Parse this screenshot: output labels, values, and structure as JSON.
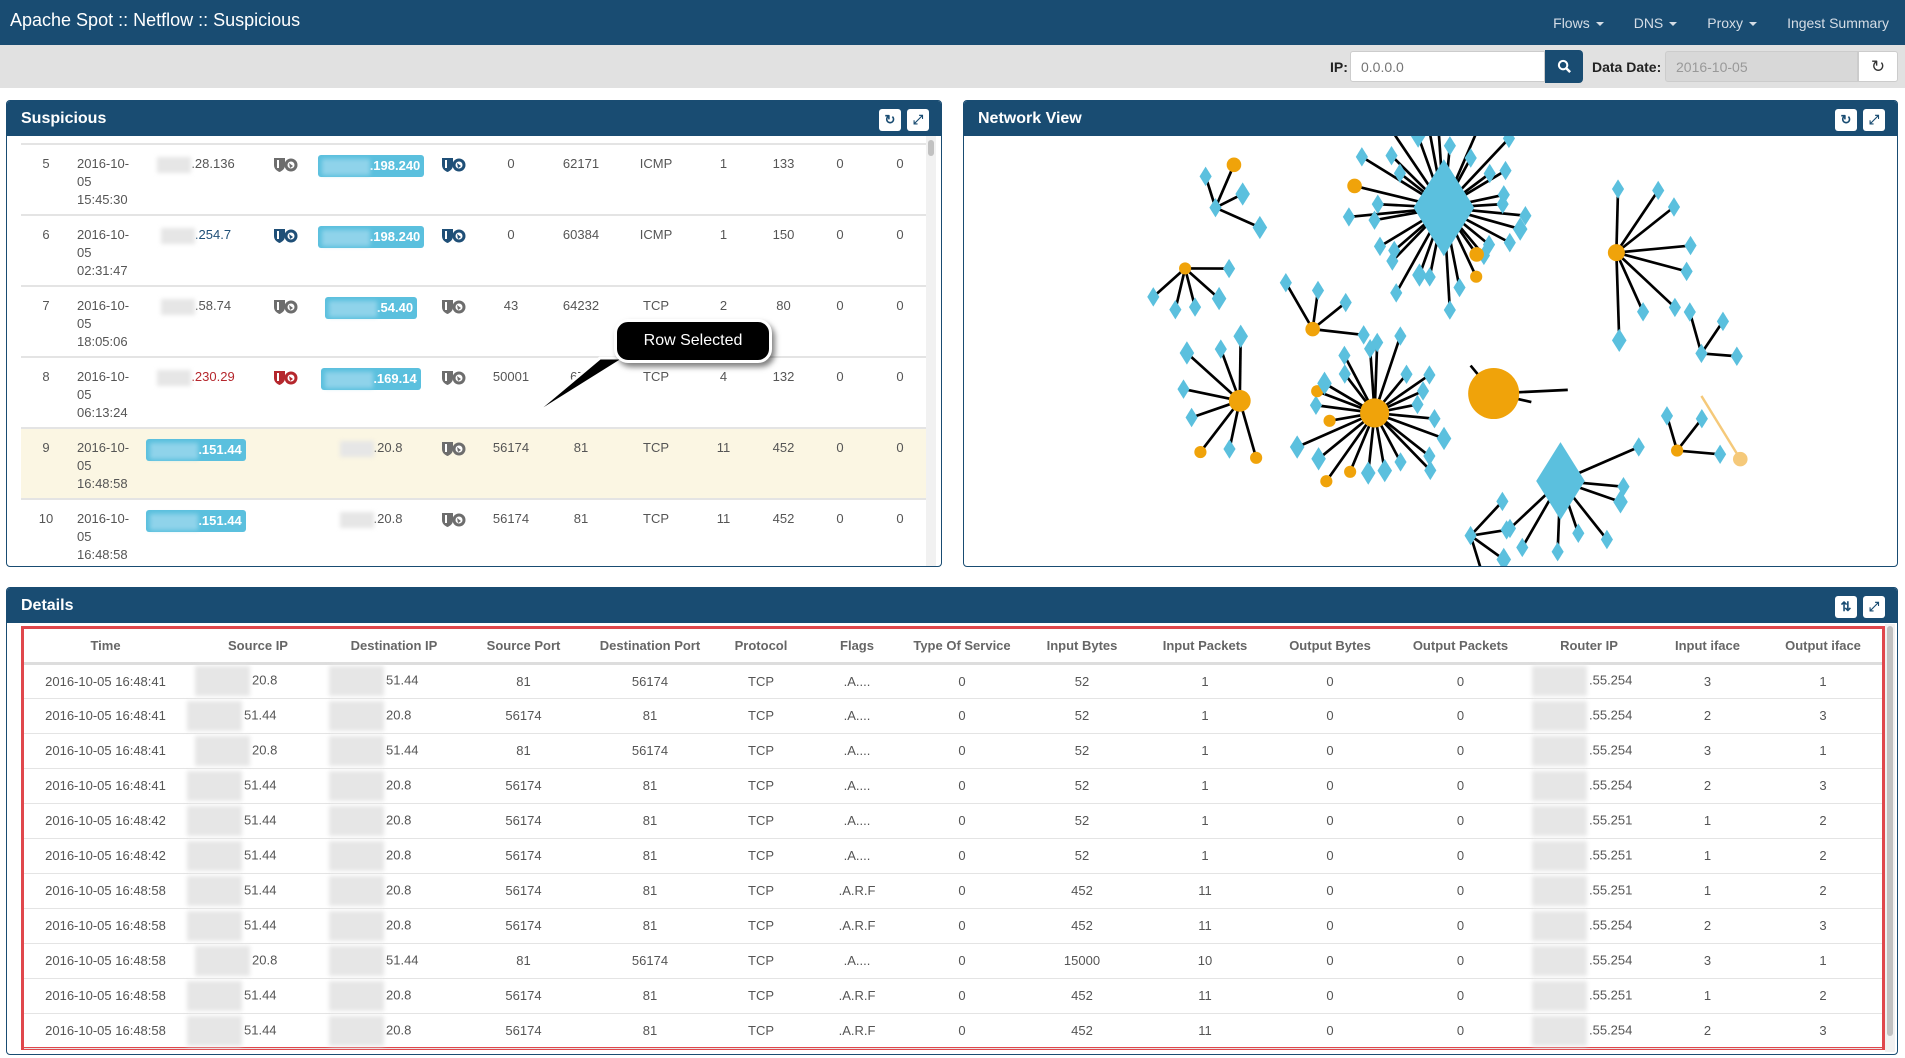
{
  "header": {
    "title": "Apache Spot :: Netflow :: Suspicious",
    "nav": [
      {
        "label": "Flows",
        "dropdown": true
      },
      {
        "label": "DNS",
        "dropdown": true
      },
      {
        "label": "Proxy",
        "dropdown": true
      },
      {
        "label": "Ingest Summary",
        "dropdown": false
      }
    ]
  },
  "toolbar": {
    "ip_label": "IP:",
    "ip_placeholder": "0.0.0.0",
    "date_label": "Data Date:",
    "date_value": "2016-10-05"
  },
  "suspicious": {
    "title": "Suspicious",
    "tooltip": "Row Selected",
    "rows": [
      [
        "5",
        "2016-10-05 15:45:30",
        ".28.136",
        "plain",
        "gray",
        ".198.240",
        "badge",
        "dark",
        "0",
        "62171",
        "ICMP",
        "1",
        "133",
        "0",
        "0"
      ],
      [
        "6",
        "2016-10-05 02:31:47",
        ".254.7",
        "plain-blue",
        "dark",
        ".198.240",
        "badge",
        "dark",
        "0",
        "60384",
        "ICMP",
        "1",
        "150",
        "0",
        "0"
      ],
      [
        "7",
        "2016-10-05 18:05:06",
        ".58.74",
        "plain",
        "gray",
        ".54.40",
        "badge",
        "gray",
        "43",
        "64232",
        "TCP",
        "2",
        "80",
        "0",
        "0"
      ],
      [
        "8",
        "2016-10-05 06:13:24",
        ".230.29",
        "plain-red",
        "red",
        ".169.14",
        "badge",
        "gray",
        "50001",
        "673",
        "TCP",
        "4",
        "132",
        "0",
        "0"
      ],
      [
        "9",
        "2016-10-05 16:48:58",
        ".151.44",
        "badge",
        "none",
        ".20.8",
        "plain",
        "gray",
        "56174",
        "81",
        "TCP",
        "11",
        "452",
        "0",
        "0"
      ],
      [
        "10",
        "2016-10-05 16:48:58",
        ".151.44",
        "badge",
        "none",
        ".20.8",
        "plain",
        "gray",
        "56174",
        "81",
        "TCP",
        "11",
        "452",
        "0",
        "0"
      ]
    ],
    "selected_rank": "9"
  },
  "network": {
    "title": "Network View"
  },
  "details": {
    "title": "Details",
    "columns": [
      "Time",
      "Source IP",
      "Destination IP",
      "Source Port",
      "Destination Port",
      "Protocol",
      "Flags",
      "Type Of Service",
      "Input Bytes",
      "Input Packets",
      "Output Bytes",
      "Output Packets",
      "Router IP",
      "Input iface",
      "Output iface"
    ],
    "rows": [
      [
        "2016-10-05 16:48:41",
        "20.8",
        "51.44",
        "81",
        "56174",
        "TCP",
        ".A....",
        "0",
        "52",
        "1",
        "0",
        "0",
        ".55.254",
        "3",
        "1"
      ],
      [
        "2016-10-05 16:48:41",
        "51.44",
        "20.8",
        "56174",
        "81",
        "TCP",
        ".A....",
        "0",
        "52",
        "1",
        "0",
        "0",
        ".55.254",
        "2",
        "3"
      ],
      [
        "2016-10-05 16:48:41",
        "20.8",
        "51.44",
        "81",
        "56174",
        "TCP",
        ".A....",
        "0",
        "52",
        "1",
        "0",
        "0",
        ".55.254",
        "3",
        "1"
      ],
      [
        "2016-10-05 16:48:41",
        "51.44",
        "20.8",
        "56174",
        "81",
        "TCP",
        ".A....",
        "0",
        "52",
        "1",
        "0",
        "0",
        ".55.254",
        "2",
        "3"
      ],
      [
        "2016-10-05 16:48:42",
        "51.44",
        "20.8",
        "56174",
        "81",
        "TCP",
        ".A....",
        "0",
        "52",
        "1",
        "0",
        "0",
        ".55.251",
        "1",
        "2"
      ],
      [
        "2016-10-05 16:48:42",
        "51.44",
        "20.8",
        "56174",
        "81",
        "TCP",
        ".A....",
        "0",
        "52",
        "1",
        "0",
        "0",
        ".55.251",
        "1",
        "2"
      ],
      [
        "2016-10-05 16:48:58",
        "51.44",
        "20.8",
        "56174",
        "81",
        "TCP",
        ".A.R.F",
        "0",
        "452",
        "11",
        "0",
        "0",
        ".55.251",
        "1",
        "2"
      ],
      [
        "2016-10-05 16:48:58",
        "51.44",
        "20.8",
        "56174",
        "81",
        "TCP",
        ".A.R.F",
        "0",
        "452",
        "11",
        "0",
        "0",
        ".55.254",
        "2",
        "3"
      ],
      [
        "2016-10-05 16:48:58",
        "20.8",
        "51.44",
        "81",
        "56174",
        "TCP",
        ".A....",
        "0",
        "15000",
        "10",
        "0",
        "0",
        ".55.254",
        "3",
        "1"
      ],
      [
        "2016-10-05 16:48:58",
        "51.44",
        "20.8",
        "56174",
        "81",
        "TCP",
        ".A.R.F",
        "0",
        "452",
        "11",
        "0",
        "0",
        ".55.251",
        "1",
        "2"
      ],
      [
        "2016-10-05 16:48:58",
        "51.44",
        "20.8",
        "56174",
        "81",
        "TCP",
        ".A.R.F",
        "0",
        "452",
        "11",
        "0",
        "0",
        ".55.254",
        "2",
        "3"
      ]
    ]
  },
  "colors": {
    "brand": "#194c72",
    "node_blue": "#5bc0de",
    "node_orange": "#f0a30a",
    "selected_row": "#fbf6e3",
    "highlight_border": "#e0474c"
  }
}
